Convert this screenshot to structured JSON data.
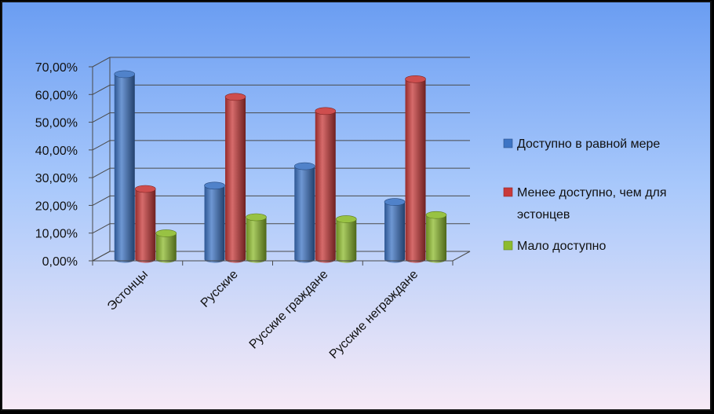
{
  "chart_data": {
    "type": "bar",
    "categories": [
      "Эстонцы",
      "Русские",
      "Русские граждане",
      "Русские неграждане"
    ],
    "series": [
      {
        "name": "Доступно в равной мере",
        "color": "#3d74c4",
        "values": [
          65.8,
          25.6,
          32.6,
          19.7
        ]
      },
      {
        "name": "Менее доступно, чем для эстонцев",
        "color": "#c83a3a",
        "values": [
          24.4,
          57.6,
          52.5,
          64.0
        ]
      },
      {
        "name": "Мало доступно",
        "color": "#8dbb2e",
        "values": [
          8.4,
          14.2,
          13.5,
          15.0
        ]
      }
    ],
    "ylim": [
      0,
      70
    ],
    "yticks": [
      "0,00%",
      "10,00%",
      "20,00%",
      "30,00%",
      "40,00%",
      "50,00%",
      "60,00%",
      "70,00%"
    ],
    "grid": true,
    "legend_position": "right",
    "title": "",
    "xlabel": "",
    "ylabel": ""
  }
}
